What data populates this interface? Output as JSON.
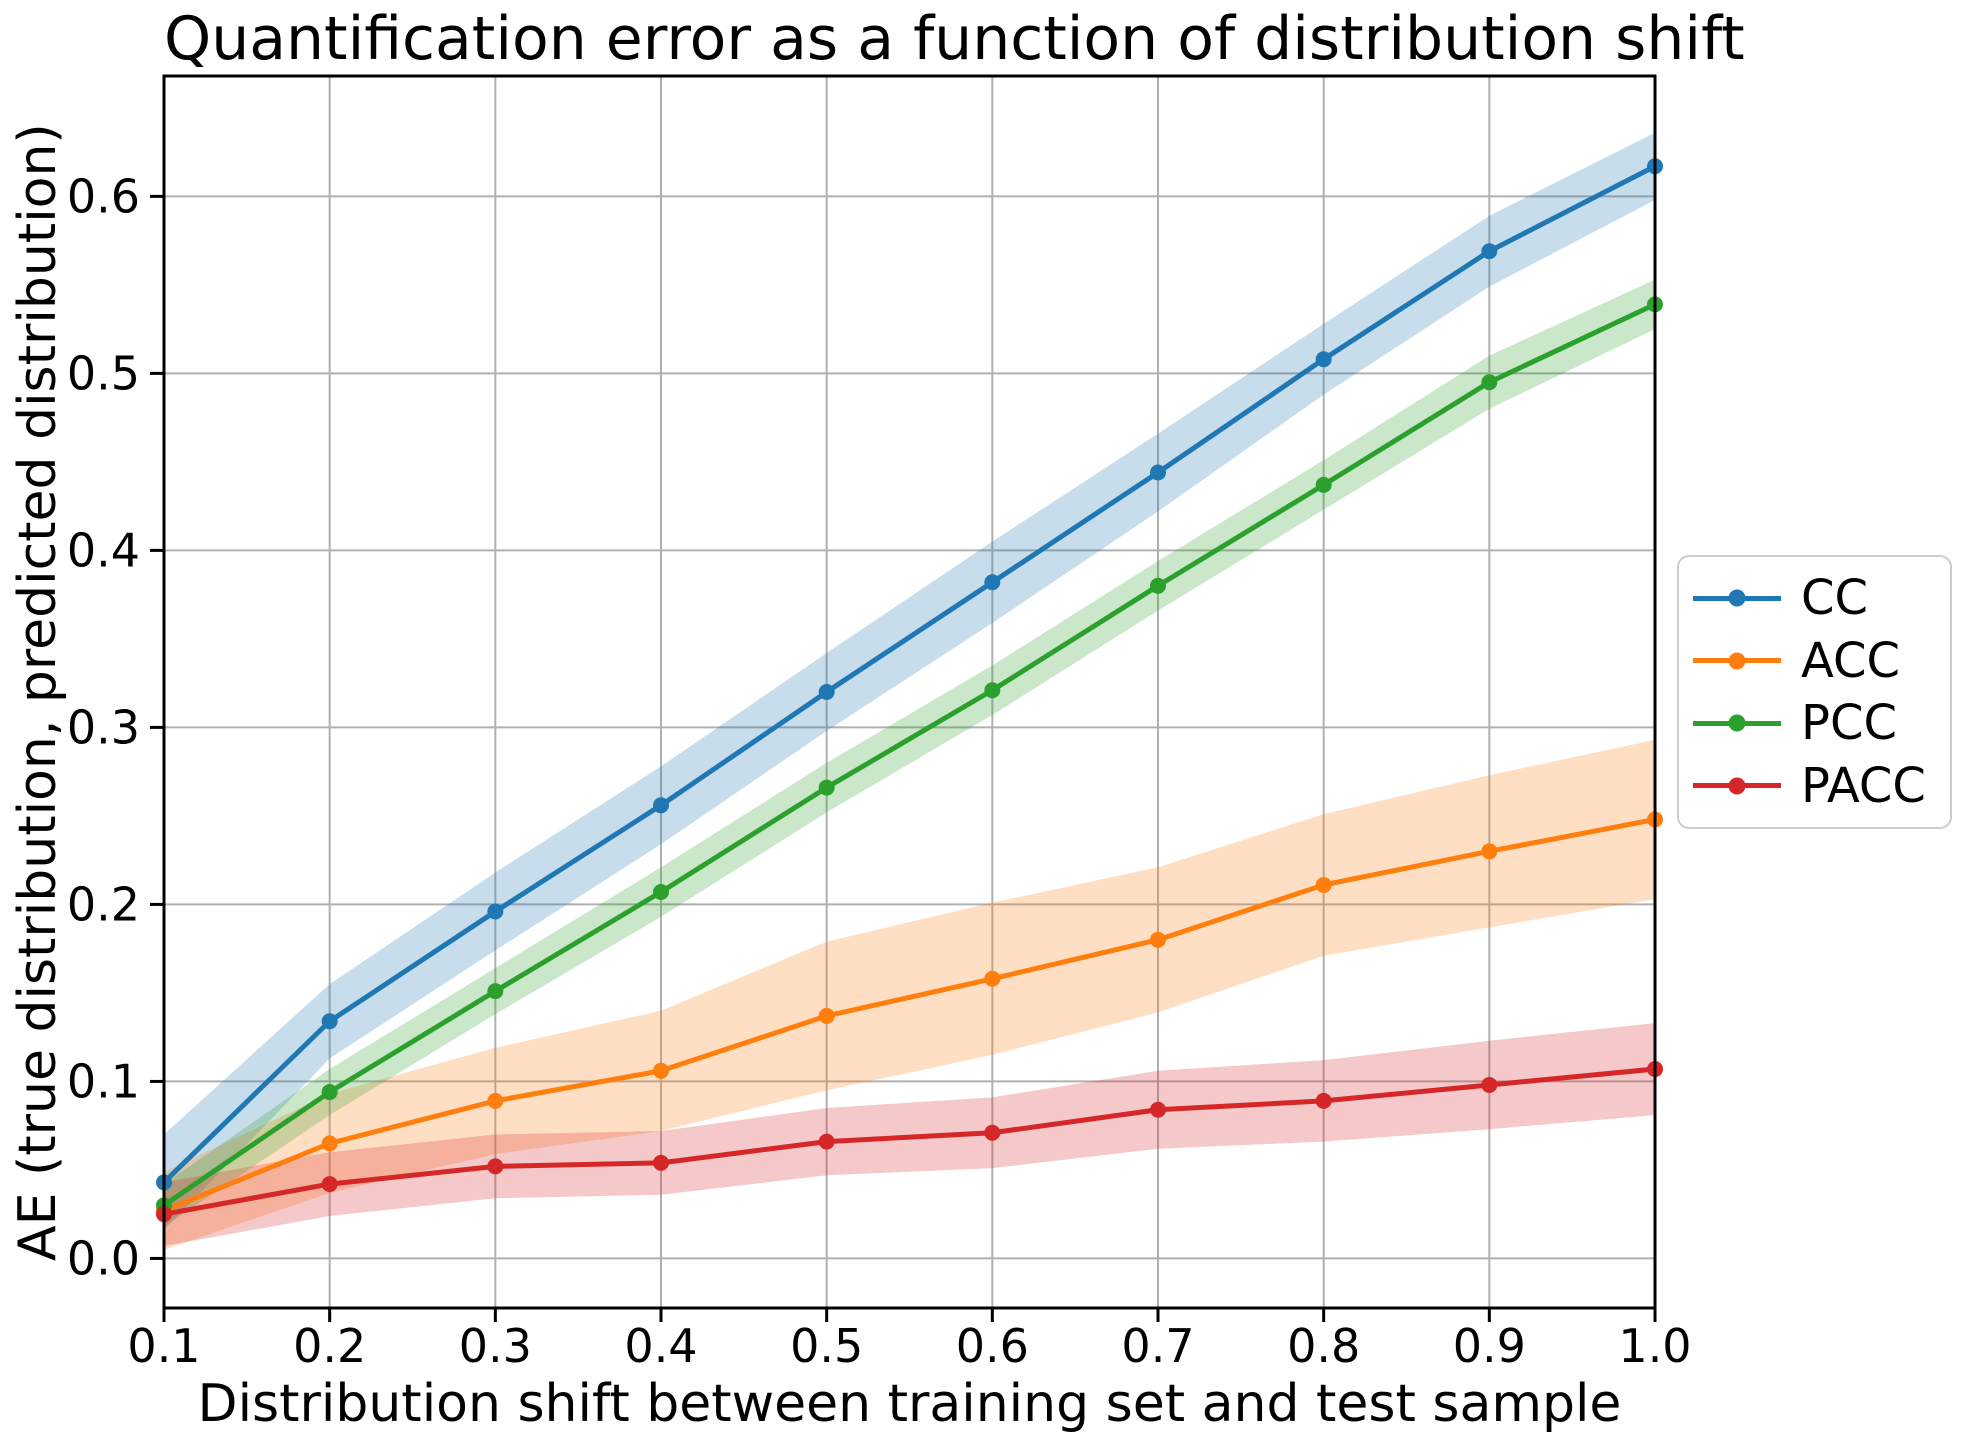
{
  "chart_data": {
    "type": "line",
    "title": "Quantification error as a function of distribution shift",
    "xlabel": "Distribution shift between training set and test sample",
    "ylabel": "AE (true distribution, predicted distribution)",
    "x": [
      0.1,
      0.2,
      0.3,
      0.4,
      0.5,
      0.6,
      0.7,
      0.8,
      0.9,
      1.0
    ],
    "x_tick_labels": [
      "0.1",
      "0.2",
      "0.3",
      "0.4",
      "0.5",
      "0.6",
      "0.7",
      "0.8",
      "0.9",
      "1.0"
    ],
    "y_ticks": [
      0.0,
      0.1,
      0.2,
      0.3,
      0.4,
      0.5,
      0.6
    ],
    "y_tick_labels": [
      "0.0",
      "0.1",
      "0.2",
      "0.3",
      "0.4",
      "0.5",
      "0.6"
    ],
    "xlim": [
      0.1,
      1.0
    ],
    "ylim": [
      -0.028,
      0.668
    ],
    "grid": true,
    "grid_color": "#b0b0b0",
    "spine_color": "#000000",
    "band_alpha": 0.25,
    "legend_position": "right-outside",
    "series": [
      {
        "name": "CC",
        "color": "#1f77b4",
        "values": [
          0.043,
          0.134,
          0.196,
          0.256,
          0.32,
          0.382,
          0.444,
          0.508,
          0.569,
          0.617
        ],
        "band_halfwidth": [
          0.027,
          0.021,
          0.022,
          0.022,
          0.022,
          0.023,
          0.022,
          0.02,
          0.02,
          0.019
        ]
      },
      {
        "name": "ACC",
        "color": "#ff7f0e",
        "values": [
          0.027,
          0.065,
          0.089,
          0.106,
          0.137,
          0.158,
          0.18,
          0.211,
          0.23,
          0.248
        ],
        "band_halfwidth": [
          0.022,
          0.028,
          0.03,
          0.034,
          0.042,
          0.043,
          0.041,
          0.04,
          0.043,
          0.045
        ]
      },
      {
        "name": "PCC",
        "color": "#2ca02c",
        "values": [
          0.03,
          0.094,
          0.151,
          0.207,
          0.266,
          0.321,
          0.38,
          0.437,
          0.495,
          0.539
        ],
        "band_halfwidth": [
          0.012,
          0.013,
          0.013,
          0.014,
          0.014,
          0.014,
          0.014,
          0.014,
          0.015,
          0.014
        ]
      },
      {
        "name": "PACC",
        "color": "#d62728",
        "values": [
          0.025,
          0.042,
          0.052,
          0.054,
          0.066,
          0.071,
          0.084,
          0.089,
          0.098,
          0.107
        ],
        "band_halfwidth": [
          0.018,
          0.018,
          0.018,
          0.018,
          0.019,
          0.02,
          0.022,
          0.023,
          0.025,
          0.026
        ]
      }
    ]
  }
}
